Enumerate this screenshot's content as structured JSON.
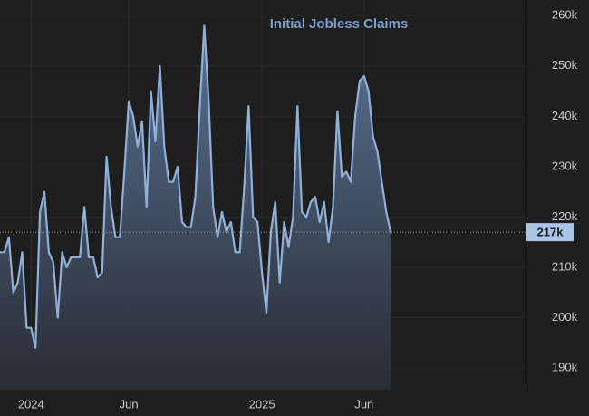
{
  "chart_data": {
    "type": "area",
    "title": "Initial Jobless Claims",
    "categories": [
      null,
      null,
      null,
      null,
      null,
      null,
      null,
      "2024",
      null,
      null,
      null,
      null,
      null,
      null,
      null,
      null,
      null,
      null,
      null,
      null,
      null,
      null,
      null,
      null,
      null,
      null,
      null,
      null,
      null,
      "Jun",
      null,
      null,
      null,
      null,
      null,
      null,
      null,
      null,
      null,
      null,
      null,
      null,
      null,
      null,
      null,
      null,
      null,
      null,
      null,
      null,
      null,
      null,
      null,
      null,
      null,
      null,
      null,
      null,
      null,
      "2025",
      null,
      null,
      null,
      null,
      null,
      null,
      null,
      null,
      null,
      null,
      null,
      null,
      null,
      null,
      null,
      null,
      null,
      null,
      null,
      null,
      null,
      null,
      "Jun",
      null,
      null,
      null,
      null,
      null,
      null
    ],
    "values": [
      213000,
      213000,
      216000,
      205000,
      207000,
      213000,
      198000,
      198000,
      194000,
      221000,
      225000,
      213000,
      211000,
      200000,
      213000,
      210000,
      212000,
      212000,
      212000,
      222000,
      212000,
      212000,
      208000,
      209000,
      232000,
      222000,
      216000,
      216000,
      229000,
      243000,
      240000,
      234000,
      239000,
      222000,
      245000,
      235000,
      250000,
      234000,
      227000,
      227000,
      230000,
      219000,
      218000,
      218000,
      224000,
      242000,
      258000,
      243000,
      222000,
      216000,
      221000,
      217000,
      219000,
      213000,
      213000,
      226000,
      242000,
      220000,
      219000,
      209000,
      201000,
      217000,
      223000,
      207000,
      219000,
      214000,
      220000,
      242000,
      221000,
      220000,
      223000,
      224000,
      219000,
      223000,
      215000,
      222000,
      241000,
      228000,
      229000,
      227000,
      240000,
      247000,
      248000,
      245000,
      236000,
      233000,
      227000,
      221000,
      217000
    ],
    "value_labels": [
      null,
      null,
      null,
      null,
      null,
      null,
      null,
      null,
      null,
      null,
      null,
      null,
      null,
      null,
      null,
      null,
      null,
      null,
      null,
      null,
      null,
      null,
      null,
      null,
      null,
      null,
      null,
      null,
      null,
      null,
      null,
      null,
      null,
      null,
      null,
      null,
      null,
      null,
      null,
      null,
      null,
      null,
      null,
      null,
      null,
      null,
      null,
      null,
      null,
      null,
      null,
      null,
      null,
      null,
      null,
      null,
      null,
      null,
      null,
      null,
      null,
      null,
      null,
      null,
      null,
      null,
      null,
      null,
      null,
      null,
      null,
      null,
      null,
      null,
      null,
      null,
      null,
      null,
      null,
      null,
      null,
      null,
      null,
      null,
      null,
      null,
      null,
      null,
      "217k"
    ],
    "color": "#8fb0d8",
    "ylim": [
      185700,
      263100
    ],
    "yticks": [
      {
        "value": 190000,
        "label": "190k"
      },
      {
        "value": 200000,
        "label": "200k"
      },
      {
        "value": 210000,
        "label": "210k"
      },
      {
        "value": 220000,
        "label": "220k"
      },
      {
        "value": 230000,
        "label": "230k"
      },
      {
        "value": 240000,
        "label": "240k"
      },
      {
        "value": 250000,
        "label": "250k"
      },
      {
        "value": 260000,
        "label": "260k"
      }
    ],
    "grid": true
  }
}
